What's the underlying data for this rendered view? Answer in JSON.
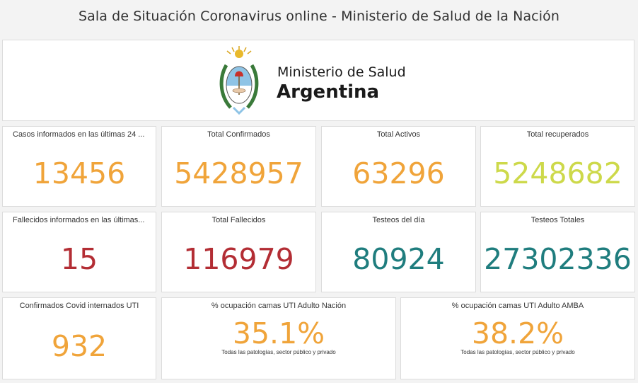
{
  "page": {
    "title": "Sala de Situación Coronavirus online - Ministerio de Salud de la Nación"
  },
  "logo": {
    "line1": "Ministerio de Salud",
    "line2": "Argentina"
  },
  "cards": {
    "casos24": {
      "label": "Casos informados en las últimas 24 ...",
      "value": "13456"
    },
    "confirmados": {
      "label": "Total Confirmados",
      "value": "5428957"
    },
    "activos": {
      "label": "Total Activos",
      "value": "63296"
    },
    "recuperados": {
      "label": "Total recuperados",
      "value": "5248682"
    },
    "fallecidos24": {
      "label": "Fallecidos informados en las últimas...",
      "value": "15"
    },
    "fallecidos": {
      "label": "Total Fallecidos",
      "value": "116979"
    },
    "testeosDia": {
      "label": "Testeos del día",
      "value": "80924"
    },
    "testeosTotales": {
      "label": "Testeos Totales",
      "value": "27302336"
    },
    "internadosUTI": {
      "label": "Confirmados Covid internados UTI",
      "value": "932"
    },
    "ocupacionNacion": {
      "label": "% ocupación camas UTI Adulto Nación",
      "value": "35.1%",
      "note": "Todas las patologías, sector público y privado"
    },
    "ocupacionAMBA": {
      "label": "% ocupación camas UTI Adulto AMBA",
      "value": "38.2%",
      "note": "Todas las patologías, sector público y privado"
    }
  },
  "colors": {
    "orange": "#f0a43a",
    "lime": "#cdd94a",
    "red": "#b32d34",
    "teal": "#1f7d7e"
  },
  "icons": {
    "emblem": "argentina-coat-of-arms-icon"
  }
}
